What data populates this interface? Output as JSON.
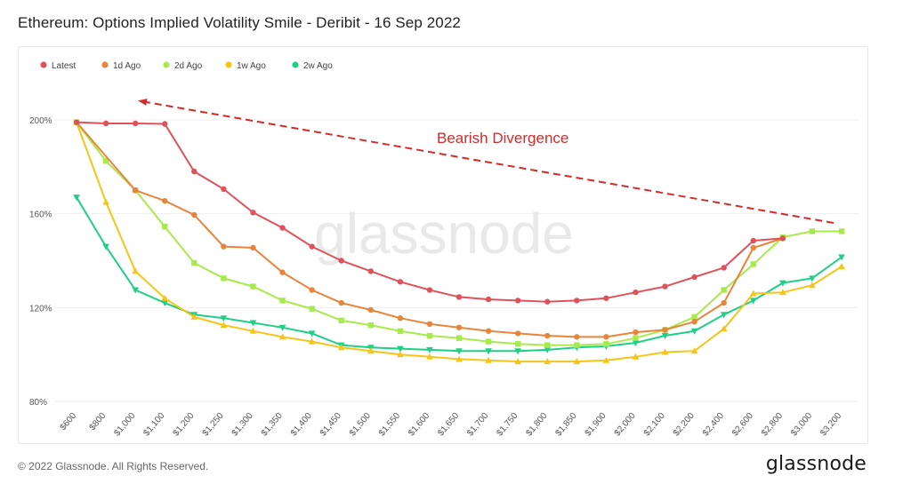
{
  "page": {
    "title": "Ethereum: Options Implied Volatility Smile - Deribit - 16 Sep 2022",
    "copyright": "© 2022 Glassnode. All Rights Reserved.",
    "brand": "glassnode",
    "watermark": "glassnode"
  },
  "chart_data": {
    "type": "line",
    "title": "Ethereum: Options Implied Volatility Smile - Deribit - 16 Sep 2022",
    "xlabel": "",
    "ylabel": "",
    "categories": [
      "$600",
      "$800",
      "$1,000",
      "$1,100",
      "$1,200",
      "$1,250",
      "$1,300",
      "$1,350",
      "$1,400",
      "$1,450",
      "$1,500",
      "$1,550",
      "$1,600",
      "$1,650",
      "$1,700",
      "$1,750",
      "$1,800",
      "$1,850",
      "$1,900",
      "$2,000",
      "$2,100",
      "$2,200",
      "$2,400",
      "$2,600",
      "$2,800",
      "$3,000",
      "$3,200"
    ],
    "yticks": [
      "80%",
      "120%",
      "160%",
      "200%"
    ],
    "ylim": [
      80,
      200
    ],
    "legend_position": "top-left",
    "grid": "horizontal",
    "series": [
      {
        "name": "Latest",
        "color": "#e0525b",
        "marker": "circle",
        "values": [
          199,
          198.5,
          198.5,
          198.3,
          178,
          170.5,
          160.5,
          154,
          146,
          140,
          135.5,
          131,
          127.5,
          124.5,
          123.5,
          123,
          122.5,
          123,
          124,
          126.5,
          129,
          133,
          137,
          148.5,
          149.5,
          null,
          null
        ]
      },
      {
        "name": "1d Ago",
        "color": "#e8853a",
        "marker": "circle",
        "values": [
          199,
          null,
          170,
          165.5,
          159.5,
          146,
          145.5,
          135,
          127.5,
          122,
          119,
          115.5,
          113,
          111.5,
          110,
          109,
          108,
          107.5,
          107.5,
          109.5,
          110.5,
          114,
          122,
          145.5,
          149.5,
          null,
          null
        ]
      },
      {
        "name": "2d Ago",
        "color": "#a8ea4c",
        "marker": "square",
        "values": [
          199,
          182.5,
          170,
          154.5,
          139,
          132.5,
          129,
          123,
          119.5,
          114.5,
          112.5,
          110,
          108,
          107,
          105.5,
          104.5,
          104,
          104,
          104.5,
          107,
          110.5,
          116,
          127.5,
          138.5,
          150,
          152.5,
          152.5
        ]
      },
      {
        "name": "1w Ago",
        "color": "#f5c518",
        "marker": "triangle-up",
        "values": [
          199,
          165,
          135.5,
          124,
          116,
          112.5,
          110,
          107.5,
          105.5,
          103,
          101.5,
          100,
          99,
          98,
          97.5,
          97,
          97,
          97,
          97.5,
          99,
          101,
          101.5,
          111,
          126,
          126.5,
          129.5,
          137.5
        ]
      },
      {
        "name": "2w Ago",
        "color": "#1ecf86",
        "marker": "triangle-down",
        "values": [
          167,
          146,
          127.5,
          122,
          117,
          115.5,
          113.5,
          111.5,
          109,
          104,
          103,
          102.5,
          102,
          101.5,
          101.5,
          101.5,
          102,
          103,
          103.5,
          105,
          108,
          110,
          117,
          123,
          130.5,
          132.5,
          141.5
        ]
      }
    ],
    "annotations": [
      {
        "text": "Bearish Divergence",
        "color": "#d42a2a",
        "type": "dashed-arrow"
      }
    ]
  }
}
